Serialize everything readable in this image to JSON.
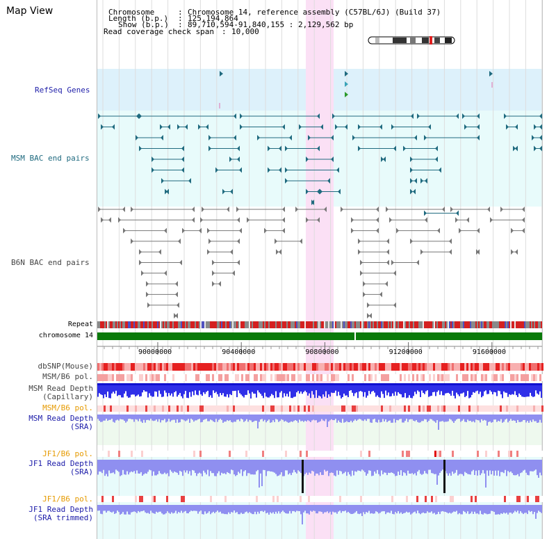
{
  "app": {
    "title": "Map View"
  },
  "header": {
    "chromosome_label": "Chromosome",
    "chromosome_value": "Chromosome 14, reference assembly (C57BL/6J) (Build 37)",
    "length_label": "Length (b.p.)",
    "length_value": "125,194,864",
    "show_label": "Show (b.p.)",
    "show_value": "89,710,594-91,840,155 : 2,129,562 bp",
    "coverage_label": "Read coverage check span",
    "coverage_value": "10,000"
  },
  "tracks": {
    "refseq": "RefSeq Genes",
    "msm_bac": "MSM BAC end pairs",
    "b6n_bac": "B6N BAC end pairs",
    "repeat": "Repeat",
    "chromosome": "chromosome 14",
    "dbsnp": "dbSNP(Mouse)",
    "msm_b6_pol_cap": "MSM/B6 pol.",
    "msm_depth_cap_1": "MSM Read Depth",
    "msm_depth_cap_2": "(Capillary)",
    "msm_b6_pol_sra": "MSM/B6 pol.",
    "msm_depth_sra_1": "MSM Read Depth",
    "msm_depth_sra_2": "(SRA)",
    "jf1_b6_pol_1": "JF1/B6 pol.",
    "jf1_depth_1": "JF1 Read Depth",
    "jf1_depth_2": "(SRA)",
    "jf1_b6_pol_2": "JF1/B6 pol.",
    "jf1_trim_1": "JF1 Read Depth",
    "jf1_trim_2": "(SRA trimmed)"
  },
  "axis": {
    "ticks": [
      "90000000",
      "90400000",
      "90800000",
      "91200000",
      "91600000"
    ],
    "tick_values": [
      90000000,
      90400000,
      90800000,
      91200000,
      91600000
    ],
    "range": [
      89710594,
      91840155
    ]
  },
  "colors": {
    "refseq_bg": "#ddf1fb",
    "msm_bg": "#e8fbfb",
    "highlight": "#fbe0f5",
    "msm_feature": "#1f6a7f",
    "b6n_feature": "#777777",
    "chromosome_bar": "#0a7a0a",
    "depth_blue": "#2f2fe8",
    "depth_light": "#8f8ff0",
    "snp_red": "#e84040"
  }
}
